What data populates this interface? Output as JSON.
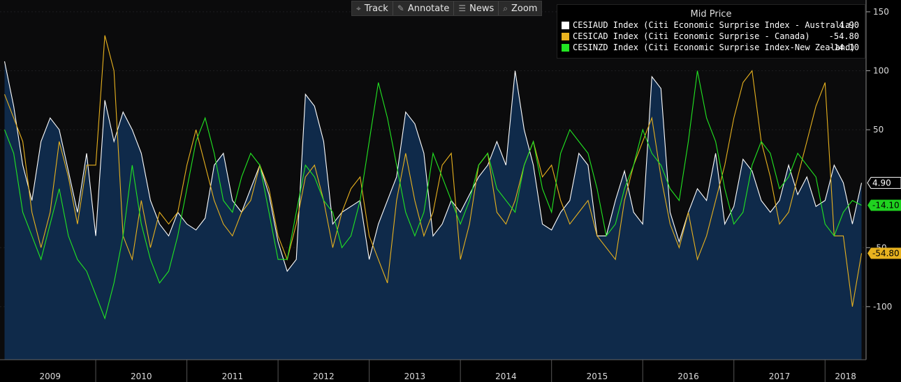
{
  "toolbar": {
    "buttons": [
      {
        "label": "Track",
        "icon": "crosshair-icon"
      },
      {
        "label": "Annotate",
        "icon": "pencil-icon"
      },
      {
        "label": "News",
        "icon": "news-icon"
      },
      {
        "label": "Zoom",
        "icon": "magnifier-icon"
      }
    ]
  },
  "legend": {
    "title": "Mid Price",
    "entries": [
      {
        "label": "CESIAUD Index (Citi Economic Surprise Index - Australia)",
        "value": "4.90",
        "color": "#ffffff"
      },
      {
        "label": "CESICAD Index (Citi Economic Surprise - Canada)",
        "value": "-54.80",
        "color": "#e8b21f"
      },
      {
        "label": "CESINZD Index (Citi Economic Surprise Index-New Zealand)",
        "value": "-14.10",
        "color": "#22e622"
      }
    ]
  },
  "chart_data": {
    "type": "line",
    "x_unit": "year",
    "x_range": [
      2008.95,
      2018.45
    ],
    "x_ticks": [
      "2009",
      "2010",
      "2011",
      "2012",
      "2013",
      "2014",
      "2015",
      "2016",
      "2017",
      "2018"
    ],
    "ylim": [
      -145,
      160
    ],
    "y_ticks": [
      150,
      100,
      50,
      -50,
      -100
    ],
    "y_tick_labels": [
      "150",
      "100",
      "50",
      "-50",
      "-100"
    ],
    "last_value_labels": [
      {
        "text": "4.90",
        "value": 4.9,
        "bg": "#000000",
        "fg": "#ffffff",
        "border": "#ffffff"
      },
      {
        "text": "-14.10",
        "value": -14.1,
        "bg": "#1fd21f",
        "fg": "#000000"
      },
      {
        "text": "-54.80",
        "value": -54.8,
        "bg": "#e8b21f",
        "fg": "#000000"
      }
    ],
    "series": [
      {
        "name": "CESIAUD Index (Citi Economic Surprise Index - Australia)",
        "color": "#ffffff",
        "area_fill": "#0f2a4a",
        "x": [
          2009.0,
          2009.1,
          2009.2,
          2009.3,
          2009.4,
          2009.5,
          2009.6,
          2009.7,
          2009.8,
          2009.9,
          2010.0,
          2010.1,
          2010.2,
          2010.3,
          2010.4,
          2010.5,
          2010.6,
          2010.7,
          2010.8,
          2010.9,
          2011.0,
          2011.1,
          2011.2,
          2011.3,
          2011.4,
          2011.5,
          2011.6,
          2011.7,
          2011.8,
          2011.9,
          2012.0,
          2012.1,
          2012.2,
          2012.3,
          2012.4,
          2012.5,
          2012.6,
          2012.7,
          2012.8,
          2012.9,
          2013.0,
          2013.1,
          2013.2,
          2013.3,
          2013.4,
          2013.5,
          2013.6,
          2013.7,
          2013.8,
          2013.9,
          2014.0,
          2014.1,
          2014.2,
          2014.3,
          2014.4,
          2014.5,
          2014.6,
          2014.7,
          2014.8,
          2014.9,
          2015.0,
          2015.1,
          2015.2,
          2015.3,
          2015.4,
          2015.5,
          2015.6,
          2015.7,
          2015.8,
          2015.9,
          2016.0,
          2016.1,
          2016.2,
          2016.3,
          2016.4,
          2016.5,
          2016.6,
          2016.7,
          2016.8,
          2016.9,
          2017.0,
          2017.1,
          2017.2,
          2017.3,
          2017.4,
          2017.5,
          2017.6,
          2017.7,
          2017.8,
          2017.9,
          2018.0,
          2018.1,
          2018.2,
          2018.3,
          2018.4
        ],
        "values": [
          108,
          70,
          20,
          -10,
          40,
          60,
          50,
          15,
          -20,
          30,
          -40,
          75,
          40,
          65,
          50,
          30,
          -10,
          -30,
          -40,
          -20,
          -30,
          -35,
          -25,
          20,
          30,
          -10,
          -20,
          0,
          20,
          -5,
          -45,
          -70,
          -60,
          80,
          70,
          40,
          -30,
          -20,
          -15,
          -10,
          -60,
          -30,
          -10,
          10,
          65,
          55,
          30,
          -40,
          -30,
          -10,
          -20,
          -5,
          10,
          20,
          40,
          20,
          100,
          50,
          20,
          -30,
          -35,
          -20,
          -10,
          30,
          20,
          -40,
          -40,
          -10,
          15,
          -20,
          -30,
          95,
          85,
          -20,
          -45,
          -20,
          0,
          -10,
          30,
          -30,
          -15,
          25,
          15,
          -10,
          -20,
          -10,
          20,
          -5,
          10,
          -15,
          -10,
          20,
          5,
          -30,
          4.9
        ]
      },
      {
        "name": "CESICAD Index (Citi Economic Surprise - Canada)",
        "color": "#e8b21f",
        "x": [
          2009.0,
          2009.1,
          2009.2,
          2009.3,
          2009.4,
          2009.5,
          2009.6,
          2009.7,
          2009.8,
          2009.9,
          2010.0,
          2010.1,
          2010.2,
          2010.3,
          2010.4,
          2010.5,
          2010.6,
          2010.7,
          2010.8,
          2010.9,
          2011.0,
          2011.1,
          2011.2,
          2011.3,
          2011.4,
          2011.5,
          2011.6,
          2011.7,
          2011.8,
          2011.9,
          2012.0,
          2012.1,
          2012.2,
          2012.3,
          2012.4,
          2012.5,
          2012.6,
          2012.7,
          2012.8,
          2012.9,
          2013.0,
          2013.1,
          2013.2,
          2013.3,
          2013.4,
          2013.5,
          2013.6,
          2013.7,
          2013.8,
          2013.9,
          2014.0,
          2014.1,
          2014.2,
          2014.3,
          2014.4,
          2014.5,
          2014.6,
          2014.7,
          2014.8,
          2014.9,
          2015.0,
          2015.1,
          2015.2,
          2015.3,
          2015.4,
          2015.5,
          2015.6,
          2015.7,
          2015.8,
          2015.9,
          2016.0,
          2016.1,
          2016.2,
          2016.3,
          2016.4,
          2016.5,
          2016.6,
          2016.7,
          2016.8,
          2016.9,
          2017.0,
          2017.1,
          2017.2,
          2017.3,
          2017.4,
          2017.5,
          2017.6,
          2017.7,
          2017.8,
          2017.9,
          2018.0,
          2018.1,
          2018.2,
          2018.3,
          2018.4
        ],
        "values": [
          80,
          60,
          40,
          -20,
          -50,
          -20,
          40,
          10,
          -30,
          20,
          20,
          130,
          100,
          -40,
          -60,
          -10,
          -50,
          -20,
          -30,
          -20,
          20,
          50,
          20,
          -10,
          -30,
          -40,
          -20,
          -10,
          20,
          0,
          -40,
          -60,
          -30,
          10,
          20,
          -10,
          -50,
          -20,
          0,
          10,
          -40,
          -60,
          -80,
          -10,
          30,
          -10,
          -40,
          -20,
          20,
          30,
          -60,
          -30,
          20,
          30,
          -20,
          -30,
          -10,
          20,
          40,
          10,
          20,
          -10,
          -30,
          -20,
          -10,
          -40,
          -50,
          -60,
          -10,
          20,
          40,
          60,
          10,
          -30,
          -50,
          -20,
          -60,
          -40,
          -10,
          20,
          60,
          90,
          100,
          40,
          10,
          -30,
          -20,
          10,
          40,
          70,
          90,
          -40,
          -40,
          -100,
          -54.8
        ]
      },
      {
        "name": "CESINZD Index (Citi Economic Surprise Index-New Zealand)",
        "color": "#22e622",
        "x": [
          2009.0,
          2009.1,
          2009.2,
          2009.3,
          2009.4,
          2009.5,
          2009.6,
          2009.7,
          2009.8,
          2009.9,
          2010.0,
          2010.1,
          2010.2,
          2010.3,
          2010.4,
          2010.5,
          2010.6,
          2010.7,
          2010.8,
          2010.9,
          2011.0,
          2011.1,
          2011.2,
          2011.3,
          2011.4,
          2011.5,
          2011.6,
          2011.7,
          2011.8,
          2011.9,
          2012.0,
          2012.1,
          2012.2,
          2012.3,
          2012.4,
          2012.5,
          2012.6,
          2012.7,
          2012.8,
          2012.9,
          2013.0,
          2013.1,
          2013.2,
          2013.3,
          2013.4,
          2013.5,
          2013.6,
          2013.7,
          2013.8,
          2013.9,
          2014.0,
          2014.1,
          2014.2,
          2014.3,
          2014.4,
          2014.5,
          2014.6,
          2014.7,
          2014.8,
          2014.9,
          2015.0,
          2015.1,
          2015.2,
          2015.3,
          2015.4,
          2015.5,
          2015.6,
          2015.7,
          2015.8,
          2015.9,
          2016.0,
          2016.1,
          2016.2,
          2016.3,
          2016.4,
          2016.5,
          2016.6,
          2016.7,
          2016.8,
          2016.9,
          2017.0,
          2017.1,
          2017.2,
          2017.3,
          2017.4,
          2017.5,
          2017.6,
          2017.7,
          2017.8,
          2017.9,
          2018.0,
          2018.1,
          2018.2,
          2018.3,
          2018.4
        ],
        "values": [
          50,
          30,
          -20,
          -40,
          -60,
          -30,
          0,
          -40,
          -60,
          -70,
          -90,
          -110,
          -80,
          -40,
          20,
          -30,
          -60,
          -80,
          -70,
          -40,
          0,
          40,
          60,
          30,
          -10,
          -20,
          10,
          30,
          20,
          -20,
          -60,
          -60,
          -20,
          20,
          10,
          -10,
          -20,
          -50,
          -40,
          -10,
          40,
          90,
          60,
          20,
          -20,
          -40,
          -20,
          30,
          10,
          -10,
          -30,
          -10,
          20,
          30,
          0,
          -10,
          -20,
          20,
          40,
          0,
          -20,
          30,
          50,
          40,
          30,
          0,
          -40,
          -30,
          0,
          20,
          50,
          30,
          20,
          0,
          -10,
          40,
          100,
          60,
          40,
          0,
          -30,
          -20,
          20,
          40,
          30,
          0,
          10,
          30,
          20,
          10,
          -30,
          -40,
          -20,
          -10,
          -14.1
        ]
      }
    ]
  }
}
